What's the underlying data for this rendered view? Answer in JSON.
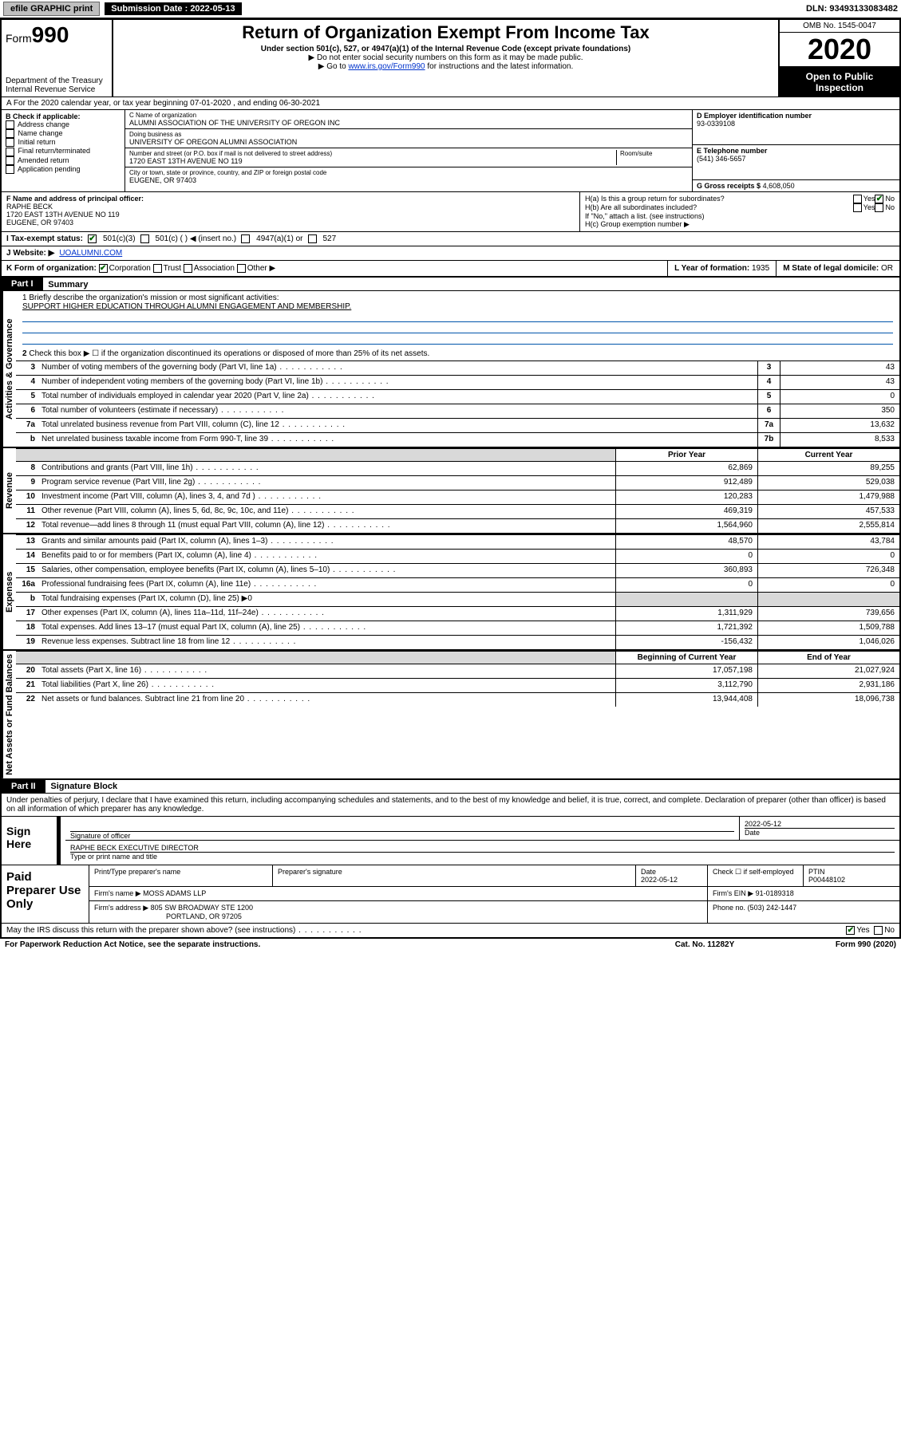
{
  "topbar": {
    "efile": "efile GRAPHIC print",
    "submission_label": "Submission Date : 2022-05-13",
    "dln": "DLN: 93493133083482"
  },
  "header": {
    "form_prefix": "Form",
    "form_number": "990",
    "dept": "Department of the Treasury\nInternal Revenue Service",
    "title": "Return of Organization Exempt From Income Tax",
    "sub1": "Under section 501(c), 527, or 4947(a)(1) of the Internal Revenue Code (except private foundations)",
    "sub2": "▶ Do not enter social security numbers on this form as it may be made public.",
    "sub3_pre": "▶ Go to ",
    "sub3_link": "www.irs.gov/Form990",
    "sub3_post": " for instructions and the latest information.",
    "omb": "OMB No. 1545-0047",
    "year": "2020",
    "open": "Open to Public Inspection"
  },
  "rowA": "A For the 2020 calendar year, or tax year beginning 07-01-2020   , and ending 06-30-2021",
  "boxB": {
    "label": "B Check if applicable:",
    "opts": [
      "Address change",
      "Name change",
      "Initial return",
      "Final return/terminated",
      "Amended return",
      "Application pending"
    ]
  },
  "boxC": {
    "lbl_name": "C Name of organization",
    "name": "ALUMNI ASSOCIATION OF THE UNIVERSITY OF OREGON INC",
    "lbl_dba": "Doing business as",
    "dba": "UNIVERSITY OF OREGON ALUMNI ASSOCIATION",
    "lbl_addr": "Number and street (or P.O. box if mail is not delivered to street address)",
    "lbl_room": "Room/suite",
    "addr": "1720 EAST 13TH AVENUE NO 119",
    "lbl_city": "City or town, state or province, country, and ZIP or foreign postal code",
    "city": "EUGENE, OR  97403"
  },
  "boxD": {
    "lbl": "D Employer identification number",
    "val": "93-0339108"
  },
  "boxE": {
    "lbl": "E Telephone number",
    "val": "(541) 346-5657"
  },
  "boxG": {
    "lbl": "G Gross receipts $",
    "val": "4,608,050"
  },
  "boxF": {
    "lbl": "F Name and address of principal officer:",
    "name": "RAPHE BECK",
    "addr1": "1720 EAST 13TH AVENUE NO 119",
    "addr2": "EUGENE, OR  97403"
  },
  "boxH": {
    "ha": "H(a)  Is this a group return for subordinates?",
    "hb": "H(b)  Are all subordinates included?",
    "hb_note": "If \"No,\" attach a list. (see instructions)",
    "hc": "H(c)  Group exemption number ▶",
    "yes": "Yes",
    "no": "No"
  },
  "rowI": {
    "lbl": "I  Tax-exempt status:",
    "o1": "501(c)(3)",
    "o2": "501(c) (  ) ◀ (insert no.)",
    "o3": "4947(a)(1) or",
    "o4": "527"
  },
  "rowJ": {
    "lbl": "J  Website: ▶",
    "val": "UOALUMNI.COM"
  },
  "rowK": {
    "lbl": "K Form of organization:",
    "o1": "Corporation",
    "o2": "Trust",
    "o3": "Association",
    "o4": "Other ▶",
    "L_lbl": "L Year of formation:",
    "L_val": "1935",
    "M_lbl": "M State of legal domicile:",
    "M_val": "OR"
  },
  "partI": {
    "bar": "Part I",
    "title": "Summary"
  },
  "sec_gov": {
    "vlabel": "Activities & Governance",
    "l1_pre": "1  Briefly describe the organization's mission or most significant activities:",
    "l1_val": "SUPPORT HIGHER EDUCATION THROUGH ALUMNI ENGAGEMENT AND MEMBERSHIP.",
    "l2": "Check this box ▶ ☐  if the organization discontinued its operations or disposed of more than 25% of its net assets.",
    "rows": [
      {
        "n": "3",
        "d": "Number of voting members of the governing body (Part VI, line 1a)",
        "box": "3",
        "v": "43"
      },
      {
        "n": "4",
        "d": "Number of independent voting members of the governing body (Part VI, line 1b)",
        "box": "4",
        "v": "43"
      },
      {
        "n": "5",
        "d": "Total number of individuals employed in calendar year 2020 (Part V, line 2a)",
        "box": "5",
        "v": "0"
      },
      {
        "n": "6",
        "d": "Total number of volunteers (estimate if necessary)",
        "box": "6",
        "v": "350"
      },
      {
        "n": "7a",
        "d": "Total unrelated business revenue from Part VIII, column (C), line 12",
        "box": "7a",
        "v": "13,632"
      },
      {
        "n": "b",
        "d": "Net unrelated business taxable income from Form 990-T, line 39",
        "box": "7b",
        "v": "8,533"
      }
    ]
  },
  "twocol": {
    "prior": "Prior Year",
    "current": "Current Year",
    "boy": "Beginning of Current Year",
    "eoy": "End of Year"
  },
  "sec_rev": {
    "vlabel": "Revenue",
    "rows": [
      {
        "n": "8",
        "d": "Contributions and grants (Part VIII, line 1h)",
        "p": "62,869",
        "c": "89,255"
      },
      {
        "n": "9",
        "d": "Program service revenue (Part VIII, line 2g)",
        "p": "912,489",
        "c": "529,038"
      },
      {
        "n": "10",
        "d": "Investment income (Part VIII, column (A), lines 3, 4, and 7d )",
        "p": "120,283",
        "c": "1,479,988"
      },
      {
        "n": "11",
        "d": "Other revenue (Part VIII, column (A), lines 5, 6d, 8c, 9c, 10c, and 11e)",
        "p": "469,319",
        "c": "457,533"
      },
      {
        "n": "12",
        "d": "Total revenue—add lines 8 through 11 (must equal Part VIII, column (A), line 12)",
        "p": "1,564,960",
        "c": "2,555,814"
      }
    ]
  },
  "sec_exp": {
    "vlabel": "Expenses",
    "rows": [
      {
        "n": "13",
        "d": "Grants and similar amounts paid (Part IX, column (A), lines 1–3)",
        "p": "48,570",
        "c": "43,784"
      },
      {
        "n": "14",
        "d": "Benefits paid to or for members (Part IX, column (A), line 4)",
        "p": "0",
        "c": "0"
      },
      {
        "n": "15",
        "d": "Salaries, other compensation, employee benefits (Part IX, column (A), lines 5–10)",
        "p": "360,893",
        "c": "726,348"
      },
      {
        "n": "16a",
        "d": "Professional fundraising fees (Part IX, column (A), line 11e)",
        "p": "0",
        "c": "0"
      },
      {
        "n": "b",
        "d": "Total fundraising expenses (Part IX, column (D), line 25) ▶0",
        "p": "",
        "c": "",
        "gray": true
      },
      {
        "n": "17",
        "d": "Other expenses (Part IX, column (A), lines 11a–11d, 11f–24e)",
        "p": "1,311,929",
        "c": "739,656"
      },
      {
        "n": "18",
        "d": "Total expenses. Add lines 13–17 (must equal Part IX, column (A), line 25)",
        "p": "1,721,392",
        "c": "1,509,788"
      },
      {
        "n": "19",
        "d": "Revenue less expenses. Subtract line 18 from line 12",
        "p": "-156,432",
        "c": "1,046,026"
      }
    ]
  },
  "sec_net": {
    "vlabel": "Net Assets or Fund Balances",
    "rows": [
      {
        "n": "20",
        "d": "Total assets (Part X, line 16)",
        "p": "17,057,198",
        "c": "21,027,924"
      },
      {
        "n": "21",
        "d": "Total liabilities (Part X, line 26)",
        "p": "3,112,790",
        "c": "2,931,186"
      },
      {
        "n": "22",
        "d": "Net assets or fund balances. Subtract line 21 from line 20",
        "p": "13,944,408",
        "c": "18,096,738"
      }
    ]
  },
  "partII": {
    "bar": "Part II",
    "title": "Signature Block"
  },
  "declare": "Under penalties of perjury, I declare that I have examined this return, including accompanying schedules and statements, and to the best of my knowledge and belief, it is true, correct, and complete. Declaration of preparer (other than officer) is based on all information of which preparer has any knowledge.",
  "sign": {
    "side": "Sign Here",
    "sig_lbl": "Signature of officer",
    "date_lbl": "Date",
    "date_val": "2022-05-12",
    "name": "RAPHE BECK  EXECUTIVE DIRECTOR",
    "name_lbl": "Type or print name and title"
  },
  "paid": {
    "side": "Paid Preparer Use Only",
    "h1": "Print/Type preparer's name",
    "h2": "Preparer's signature",
    "h3": "Date",
    "h3v": "2022-05-12",
    "h4": "Check ☐ if self-employed",
    "h5": "PTIN",
    "h5v": "P00448102",
    "firm_lbl": "Firm's name    ▶",
    "firm": "MOSS ADAMS LLP",
    "ein_lbl": "Firm's EIN ▶",
    "ein": "91-0189318",
    "addr_lbl": "Firm's address ▶",
    "addr1": "805 SW BROADWAY STE 1200",
    "addr2": "PORTLAND, OR  97205",
    "phone_lbl": "Phone no.",
    "phone": "(503) 242-1447"
  },
  "discuss": {
    "q": "May the IRS discuss this return with the preparer shown above? (see instructions)",
    "yes": "Yes",
    "no": "No"
  },
  "footer": {
    "pra": "For Paperwork Reduction Act Notice, see the separate instructions.",
    "cat": "Cat. No. 11282Y",
    "form": "Form 990 (2020)"
  }
}
